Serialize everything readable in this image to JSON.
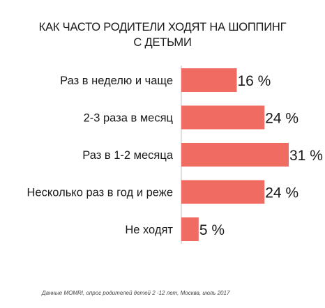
{
  "chart_data": {
    "type": "bar",
    "orientation": "horizontal",
    "title_lines": [
      "КАК ЧАСТО РОДИТЕЛИ ХОДЯТ НА ШОППИНГ",
      "С ДЕТЬМИ"
    ],
    "categories": [
      "Раз в неделю и чаще",
      "2-3 раза в месяц",
      "Раз в 1-2 месяца",
      "Несколько раз в год и реже",
      "Не ходят"
    ],
    "values": [
      16,
      24,
      31,
      24,
      5
    ],
    "value_labels": [
      "16 %",
      "24 %",
      "31 %",
      "24 %",
      "5 %"
    ],
    "unit": "%",
    "xlim": [
      0,
      31
    ],
    "grid": false,
    "legend": "none",
    "bar_color": "#f06b61"
  },
  "source_note": "Данные MOMRI, опрос родителей детей 2 -12 лет, Москва, июль 2017"
}
